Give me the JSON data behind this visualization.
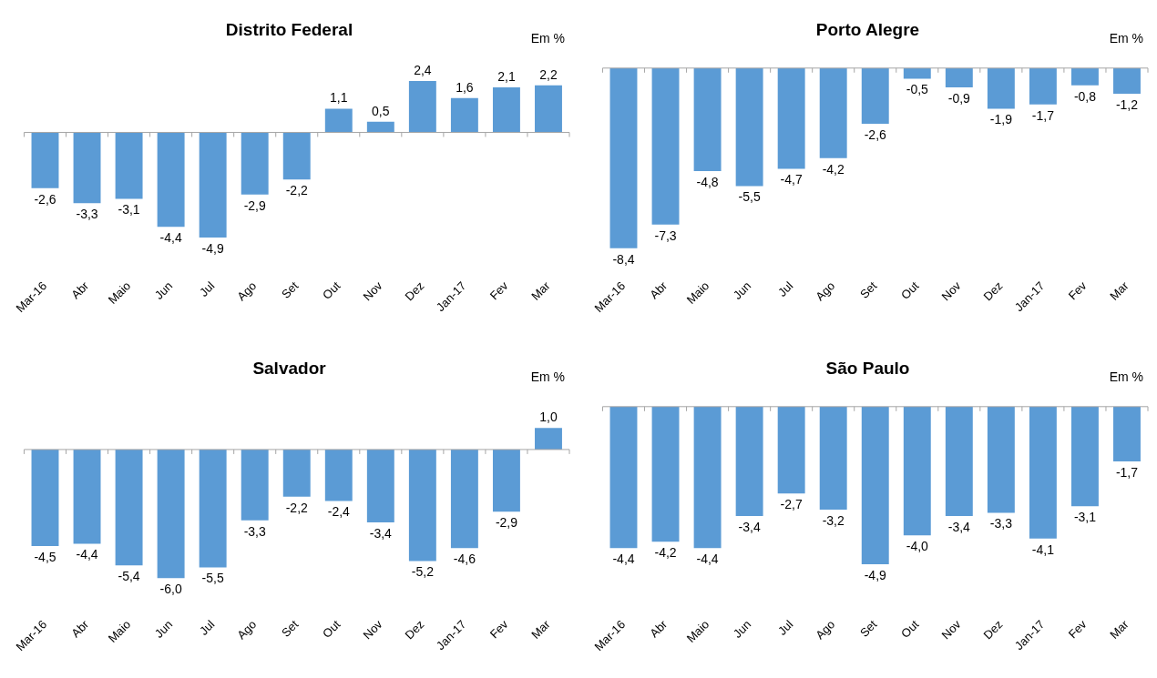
{
  "chart_data": [
    {
      "type": "bar",
      "title": "Distrito Federal",
      "annotations": [
        "Em %"
      ],
      "categories": [
        "Mar-16",
        "Abr",
        "Maio",
        "Jun",
        "Jul",
        "Ago",
        "Set",
        "Out",
        "Nov",
        "Dez",
        "Jan-17",
        "Fev",
        "Mar"
      ],
      "color": "#5b9bd5",
      "values": [
        -2.6,
        -3.3,
        -3.1,
        -4.4,
        -4.9,
        -2.9,
        -2.2,
        1.1,
        0.5,
        2.4,
        1.6,
        2.1,
        2.2
      ],
      "value_labels": [
        "-2,6",
        "-3,3",
        "-3,1",
        "-4,4",
        "-4,9",
        "-2,9",
        "-2,2",
        "1,1",
        "0,5",
        "2,4",
        "1,6",
        "2,1",
        "2,2"
      ]
    },
    {
      "type": "bar",
      "title": "Porto Alegre",
      "annotations": [
        "Em %"
      ],
      "categories": [
        "Mar-16",
        "Abr",
        "Maio",
        "Jun",
        "Jul",
        "Ago",
        "Set",
        "Out",
        "Nov",
        "Dez",
        "Jan-17",
        "Fev",
        "Mar"
      ],
      "color": "#5b9bd5",
      "values": [
        -8.4,
        -7.3,
        -4.8,
        -5.5,
        -4.7,
        -4.2,
        -2.6,
        -0.5,
        -0.9,
        -1.9,
        -1.7,
        -0.8,
        -1.2
      ],
      "value_labels": [
        "-8,4",
        "-7,3",
        "-4,8",
        "-5,5",
        "-4,7",
        "-4,2",
        "-2,6",
        "-0,5",
        "-0,9",
        "-1,9",
        "-1,7",
        "-0,8",
        "-1,2"
      ]
    },
    {
      "type": "bar",
      "title": "Salvador",
      "annotations": [
        "Em %"
      ],
      "categories": [
        "Mar-16",
        "Abr",
        "Maio",
        "Jun",
        "Jul",
        "Ago",
        "Set",
        "Out",
        "Nov",
        "Dez",
        "Jan-17",
        "Fev",
        "Mar"
      ],
      "color": "#5b9bd5",
      "values": [
        -4.5,
        -4.4,
        -5.4,
        -6.0,
        -5.5,
        -3.3,
        -2.2,
        -2.4,
        -3.4,
        -5.2,
        -4.6,
        -2.9,
        1.0
      ],
      "value_labels": [
        "-4,5",
        "-4,4",
        "-5,4",
        "-6,0",
        "-5,5",
        "-3,3",
        "-2,2",
        "-2,4",
        "-3,4",
        "-5,2",
        "-4,6",
        "-2,9",
        "1,0"
      ]
    },
    {
      "type": "bar",
      "title": "São Paulo",
      "annotations": [
        "Em %"
      ],
      "categories": [
        "Mar-16",
        "Abr",
        "Maio",
        "Jun",
        "Jul",
        "Ago",
        "Set",
        "Out",
        "Nov",
        "Dez",
        "Jan-17",
        "Fev",
        "Mar"
      ],
      "color": "#5b9bd5",
      "values": [
        -4.4,
        -4.2,
        -4.4,
        -3.4,
        -2.7,
        -3.2,
        -4.9,
        -4.0,
        -3.4,
        -3.3,
        -4.1,
        -3.1,
        -1.7
      ],
      "value_labels": [
        "-4,4",
        "-4,2",
        "-4,4",
        "-3,4",
        "-2,7",
        "-3,2",
        "-4,9",
        "-4,0",
        "-3,4",
        "-3,3",
        "-4,1",
        "-3,1",
        "-1,7"
      ]
    }
  ]
}
